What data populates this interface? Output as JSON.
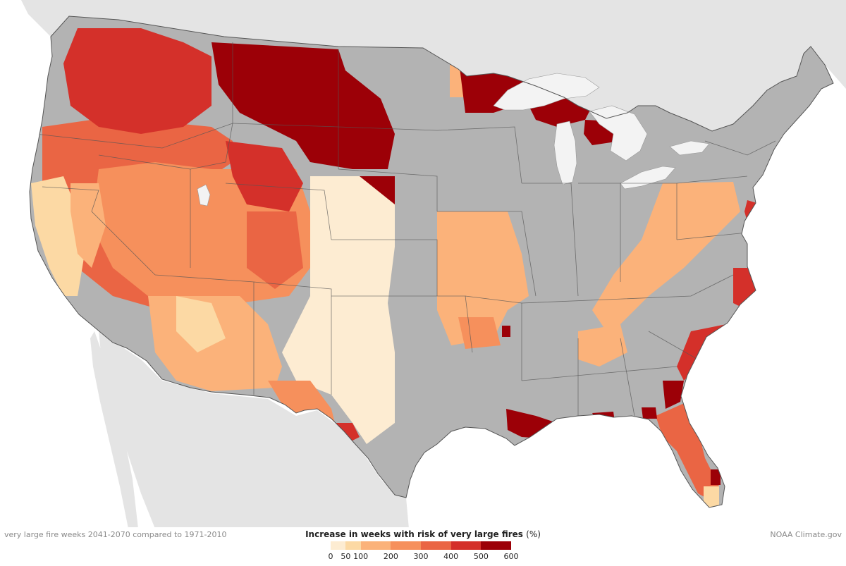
{
  "caption": "very large fire weeks 2041-2070 compared to 1971-2010",
  "credit": "NOAA Climate.gov",
  "legend": {
    "title": "Increase in weeks with risk of very large fires",
    "unit": "(%)",
    "bins": [
      {
        "from": 0,
        "to": 50,
        "color": "#fdecd2"
      },
      {
        "from": 50,
        "to": 100,
        "color": "#fcd9a4"
      },
      {
        "from": 100,
        "to": 200,
        "color": "#fbb27a"
      },
      {
        "from": 200,
        "to": 300,
        "color": "#f6905c"
      },
      {
        "from": 300,
        "to": 400,
        "color": "#ea6544"
      },
      {
        "from": 400,
        "to": 500,
        "color": "#d4302a"
      },
      {
        "from": 500,
        "to": 600,
        "color": "#9c0007"
      }
    ],
    "tick_labels": [
      "0",
      "50",
      "100",
      "200",
      "300",
      "400",
      "500",
      "600"
    ]
  },
  "colors": {
    "no_data": "#b3b3b3",
    "land_outside_us": "#e4e4e4",
    "water": "#ffffff",
    "great_lakes": "#f3f3f3",
    "state_border": "#555555"
  }
}
